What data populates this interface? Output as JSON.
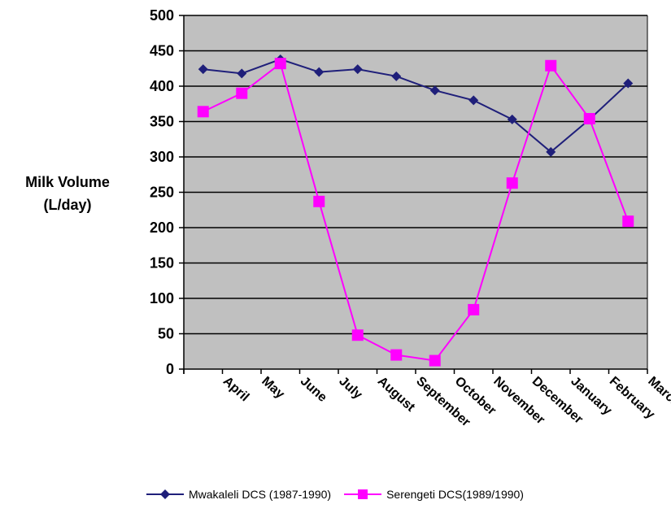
{
  "chart_data": {
    "type": "line",
    "title": "",
    "ylabel": "Milk Volume\n(L/day)",
    "xlabel": "",
    "categories": [
      "April",
      "May",
      "June",
      "July",
      "August",
      "September",
      "October",
      "November",
      "December",
      "January",
      "February",
      "March"
    ],
    "ylim": [
      0,
      500
    ],
    "yticks": [
      0,
      50,
      100,
      150,
      200,
      250,
      300,
      350,
      400,
      450,
      500
    ],
    "grid": true,
    "legend_position": "bottom",
    "series": [
      {
        "name": "Mwakaleli DCS (1987-1990)",
        "color": "#1f1f7a",
        "marker": "diamond",
        "values": [
          424,
          418,
          438,
          420,
          424,
          414,
          394,
          380,
          353,
          307,
          353,
          404
        ]
      },
      {
        "name": "Serengeti DCS(1989/1990)",
        "color": "#ff00ff",
        "marker": "square",
        "values": [
          364,
          390,
          432,
          237,
          48,
          20,
          12,
          84,
          263,
          429,
          354,
          209
        ]
      }
    ],
    "plot_background": "#c0c0c0"
  }
}
